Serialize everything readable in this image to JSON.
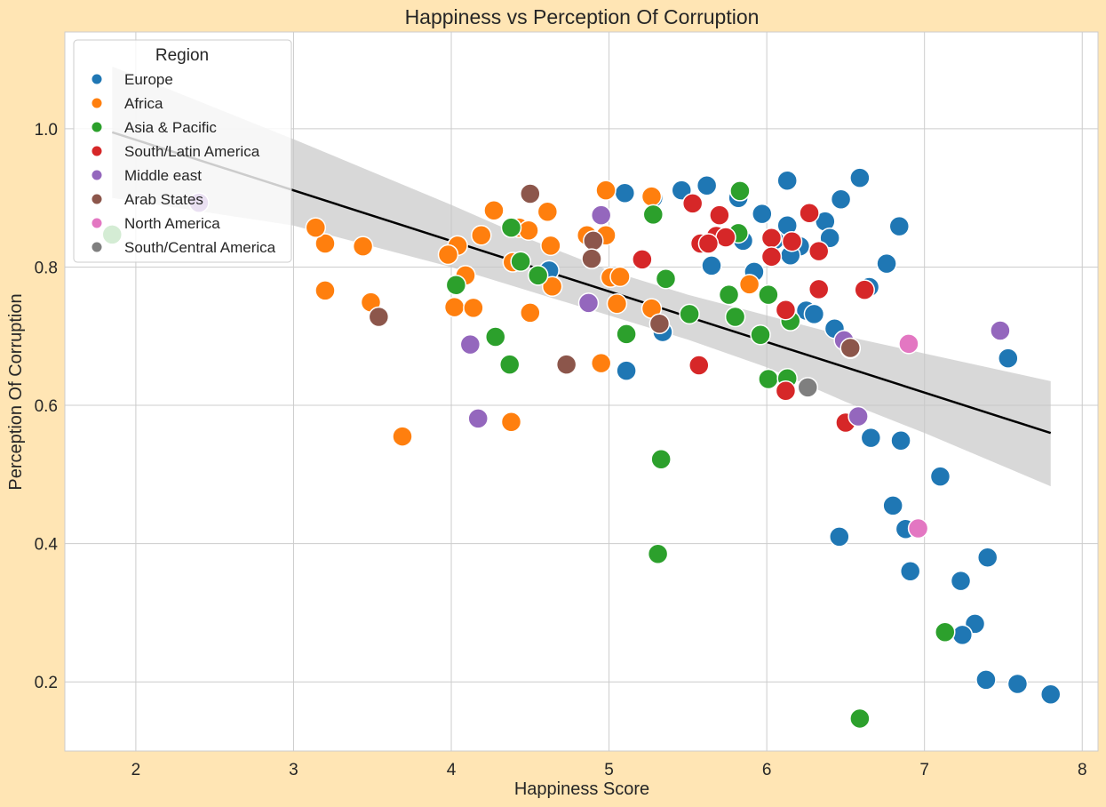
{
  "chart_data": {
    "type": "scatter",
    "title": "Happiness vs Perception Of Corruption",
    "xlabel": "Happiness Score",
    "ylabel": "Perception Of Corruption",
    "xlim": [
      1.55,
      8.1
    ],
    "ylim": [
      0.1,
      1.14
    ],
    "xticks": [
      2,
      3,
      4,
      5,
      6,
      7,
      8
    ],
    "yticks": [
      0.2,
      0.4,
      0.6,
      0.8,
      1.0
    ],
    "xtick_labels": [
      "2",
      "3",
      "4",
      "5",
      "6",
      "7",
      "8"
    ],
    "ytick_labels": [
      "0.2",
      "0.4",
      "0.6",
      "0.8",
      "1.0"
    ],
    "grid": true,
    "legend": {
      "title": "Region",
      "placement": "top-left"
    },
    "regression": {
      "color": "#000000",
      "band_color": "#c8c8c8",
      "points": [
        [
          1.85,
          0.995
        ],
        [
          7.8,
          0.56
        ]
      ],
      "band": [
        [
          1.85,
          1.09,
          0.9
        ],
        [
          3.0,
          0.985,
          0.86
        ],
        [
          4.0,
          0.89,
          0.8
        ],
        [
          4.5,
          0.84,
          0.765
        ],
        [
          5.0,
          0.795,
          0.73
        ],
        [
          5.5,
          0.76,
          0.695
        ],
        [
          6.0,
          0.73,
          0.655
        ],
        [
          6.5,
          0.7,
          0.605
        ],
        [
          7.0,
          0.675,
          0.56
        ],
        [
          7.8,
          0.635,
          0.483
        ]
      ]
    },
    "series": [
      {
        "name": "Europe",
        "color": "#1f77b4",
        "points": [
          [
            5.1,
            0.907
          ],
          [
            5.28,
            0.9
          ],
          [
            5.46,
            0.911
          ],
          [
            5.62,
            0.918
          ],
          [
            5.82,
            0.9
          ],
          [
            6.13,
            0.925
          ],
          [
            6.59,
            0.929
          ],
          [
            6.47,
            0.898
          ],
          [
            6.37,
            0.866
          ],
          [
            5.97,
            0.877
          ],
          [
            6.13,
            0.86
          ],
          [
            6.05,
            0.839
          ],
          [
            6.4,
            0.842
          ],
          [
            6.21,
            0.83
          ],
          [
            6.15,
            0.817
          ],
          [
            5.65,
            0.802
          ],
          [
            5.92,
            0.793
          ],
          [
            4.62,
            0.795
          ],
          [
            6.84,
            0.859
          ],
          [
            6.76,
            0.805
          ],
          [
            6.65,
            0.771
          ],
          [
            6.25,
            0.737
          ],
          [
            6.3,
            0.732
          ],
          [
            6.43,
            0.711
          ],
          [
            5.34,
            0.706
          ],
          [
            5.11,
            0.65
          ],
          [
            7.53,
            0.668
          ],
          [
            6.66,
            0.553
          ],
          [
            6.85,
            0.549
          ],
          [
            7.1,
            0.497
          ],
          [
            6.8,
            0.455
          ],
          [
            6.88,
            0.421
          ],
          [
            6.46,
            0.41
          ],
          [
            6.91,
            0.36
          ],
          [
            7.4,
            0.38
          ],
          [
            7.23,
            0.346
          ],
          [
            7.32,
            0.284
          ],
          [
            7.24,
            0.268
          ],
          [
            7.39,
            0.203
          ],
          [
            7.59,
            0.197
          ],
          [
            7.8,
            0.182
          ],
          [
            5.85,
            0.838
          ]
        ]
      },
      {
        "name": "Africa",
        "color": "#ff7f0e",
        "points": [
          [
            4.98,
            0.911
          ],
          [
            5.27,
            0.902
          ],
          [
            4.27,
            0.882
          ],
          [
            4.61,
            0.88
          ],
          [
            4.43,
            0.857
          ],
          [
            4.49,
            0.853
          ],
          [
            4.19,
            0.846
          ],
          [
            4.86,
            0.846
          ],
          [
            4.98,
            0.846
          ],
          [
            3.2,
            0.834
          ],
          [
            3.44,
            0.83
          ],
          [
            4.04,
            0.831
          ],
          [
            4.63,
            0.831
          ],
          [
            3.98,
            0.818
          ],
          [
            4.39,
            0.807
          ],
          [
            4.09,
            0.788
          ],
          [
            5.01,
            0.785
          ],
          [
            5.07,
            0.786
          ],
          [
            4.64,
            0.772
          ],
          [
            5.89,
            0.775
          ],
          [
            3.2,
            0.766
          ],
          [
            3.49,
            0.749
          ],
          [
            4.02,
            0.742
          ],
          [
            4.14,
            0.741
          ],
          [
            5.05,
            0.747
          ],
          [
            5.27,
            0.74
          ],
          [
            4.5,
            0.734
          ],
          [
            4.95,
            0.661
          ],
          [
            3.69,
            0.555
          ],
          [
            4.38,
            0.576
          ],
          [
            3.14,
            0.857
          ]
        ]
      },
      {
        "name": "Asia & Pacific",
        "color": "#2ca02c",
        "points": [
          [
            1.85,
            0.847
          ],
          [
            4.38,
            0.857
          ],
          [
            4.44,
            0.808
          ],
          [
            4.55,
            0.788
          ],
          [
            4.03,
            0.774
          ],
          [
            5.28,
            0.876
          ],
          [
            5.83,
            0.91
          ],
          [
            5.82,
            0.849
          ],
          [
            5.36,
            0.783
          ],
          [
            5.76,
            0.76
          ],
          [
            6.01,
            0.76
          ],
          [
            5.11,
            0.703
          ],
          [
            5.51,
            0.732
          ],
          [
            5.8,
            0.728
          ],
          [
            5.96,
            0.702
          ],
          [
            6.15,
            0.722
          ],
          [
            6.53,
            0.682
          ],
          [
            4.28,
            0.699
          ],
          [
            4.37,
            0.659
          ],
          [
            6.01,
            0.638
          ],
          [
            6.13,
            0.639
          ],
          [
            5.33,
            0.522
          ],
          [
            5.31,
            0.385
          ],
          [
            7.13,
            0.272
          ],
          [
            6.59,
            0.147
          ]
        ]
      },
      {
        "name": "South/Latin America",
        "color": "#d62728",
        "points": [
          [
            5.53,
            0.892
          ],
          [
            5.7,
            0.875
          ],
          [
            6.27,
            0.878
          ],
          [
            6.03,
            0.842
          ],
          [
            5.68,
            0.845
          ],
          [
            5.74,
            0.843
          ],
          [
            5.58,
            0.834
          ],
          [
            5.63,
            0.834
          ],
          [
            6.16,
            0.837
          ],
          [
            6.33,
            0.823
          ],
          [
            6.03,
            0.815
          ],
          [
            5.21,
            0.811
          ],
          [
            6.33,
            0.768
          ],
          [
            6.62,
            0.767
          ],
          [
            6.12,
            0.738
          ],
          [
            5.57,
            0.658
          ],
          [
            6.12,
            0.621
          ],
          [
            6.5,
            0.575
          ]
        ]
      },
      {
        "name": "Middle east",
        "color": "#9467bd",
        "points": [
          [
            2.4,
            0.893
          ],
          [
            4.95,
            0.875
          ],
          [
            4.87,
            0.748
          ],
          [
            4.12,
            0.688
          ],
          [
            6.49,
            0.694
          ],
          [
            4.17,
            0.581
          ],
          [
            6.58,
            0.584
          ],
          [
            7.48,
            0.708
          ]
        ]
      },
      {
        "name": "Arab States",
        "color": "#8c564b",
        "points": [
          [
            4.5,
            0.906
          ],
          [
            4.9,
            0.838
          ],
          [
            4.89,
            0.812
          ],
          [
            3.54,
            0.728
          ],
          [
            5.32,
            0.718
          ],
          [
            4.73,
            0.659
          ],
          [
            6.53,
            0.683
          ]
        ]
      },
      {
        "name": "North America",
        "color": "#e377c2",
        "points": [
          [
            6.9,
            0.689
          ],
          [
            6.96,
            0.422
          ]
        ]
      },
      {
        "name": "South/Central America",
        "color": "#7f7f7f",
        "points": [
          [
            6.26,
            0.626
          ]
        ]
      }
    ]
  }
}
